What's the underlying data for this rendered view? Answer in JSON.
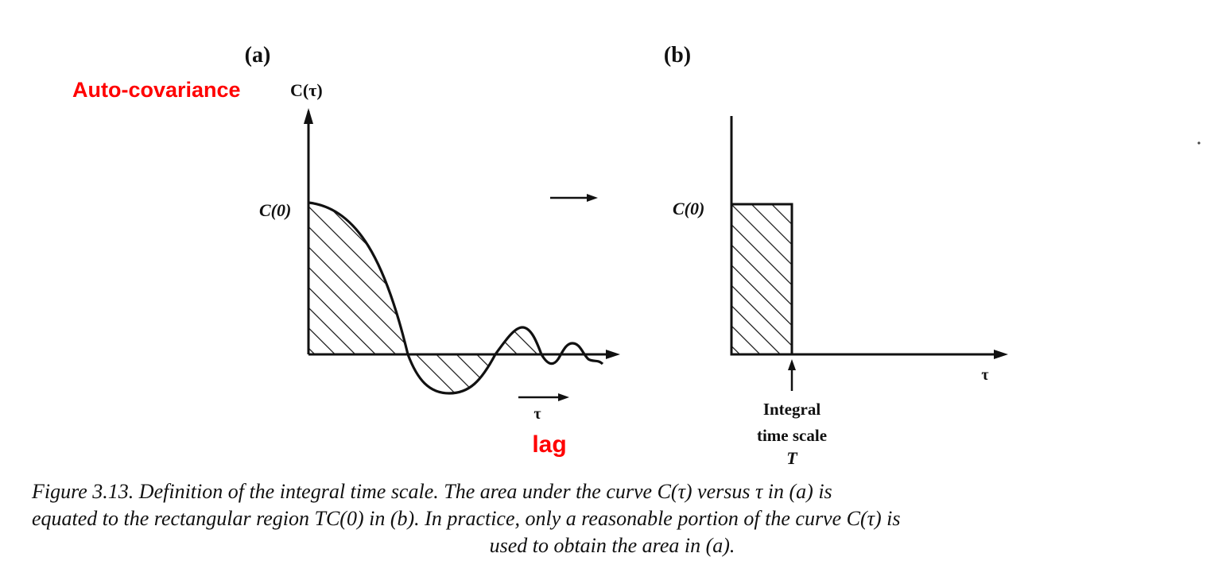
{
  "panel_a": {
    "label": "(a)",
    "y_axis_label": "C(τ)",
    "c0_label": "C(0)",
    "x_axis_label": "τ",
    "overlay_ylabel": "Auto-covariance",
    "overlay_xlabel": "lag"
  },
  "panel_b": {
    "label": "(b)",
    "c0_label": "C(0)",
    "x_axis_label": "τ",
    "scale_line1": "Integral",
    "scale_line2": "time scale",
    "scale_symbol": "T"
  },
  "caption": {
    "line1": "Figure 3.13. Definition of the integral time scale. The area under the curve C(τ) versus τ in (a) is",
    "line2": "equated to the rectangular region TC(0) in (b). In practice, only a reasonable portion of the curve C(τ) is",
    "line3": "used to obtain the area in (a)."
  },
  "colors": {
    "ink": "#111111",
    "overlay": "#ff0000"
  }
}
